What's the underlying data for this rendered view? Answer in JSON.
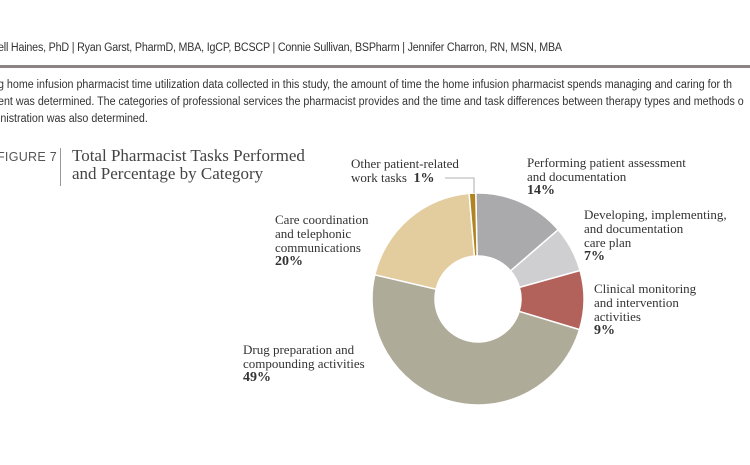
{
  "header": {
    "authors": "ell Haines, PhD | Ryan Garst, PharmD, MBA, IgCP, BCSCP | Connie Sullivan, BSPharm | Jennifer Charron, RN, MSN, MBA"
  },
  "body": {
    "lines": [
      "g home infusion pharmacist time utilization data collected in this study, the amount of time the home infusion pharmacist spends managing and caring for th",
      "ent was determined. The categories of professional services the pharmacist provides and the time and task differences between therapy types and methods o",
      "inistration was also determined."
    ]
  },
  "figure": {
    "label": "FIGURE 7",
    "title_line1": "Total Pharmacist Tasks Performed",
    "title_line2": "and Percentage by Category"
  },
  "chart_data": {
    "type": "pie",
    "variant": "donut",
    "title": "Total Pharmacist Tasks Performed and Percentage by Category",
    "start": "top, clockwise",
    "slices": [
      {
        "label": "Performing patient assessment and documentation",
        "lines": [
          "Performing patient assessment",
          "and documentation"
        ],
        "value": 14,
        "pct_label": "14%",
        "color": "#aaaaad"
      },
      {
        "label": "Developing, implementing, and documentation care plan",
        "lines": [
          "Developing, implementing,",
          "and documentation",
          "care plan"
        ],
        "value": 7,
        "pct_label": "7%",
        "color": "#cfcfd1"
      },
      {
        "label": "Clinical monitoring and intervention activities",
        "lines": [
          "Clinical monitoring",
          "and intervention",
          "activities"
        ],
        "value": 9,
        "pct_label": "9%",
        "color": "#b3625b"
      },
      {
        "label": "Drug preparation and compounding activities",
        "lines": [
          "Drug preparation and",
          "compounding activities"
        ],
        "value": 49,
        "pct_label": "49%",
        "color": "#aeab98"
      },
      {
        "label": "Care coordination and telephonic communications",
        "lines": [
          "Care coordination",
          "and telephonic",
          "communications"
        ],
        "value": 20,
        "pct_label": "20%",
        "color": "#e3cc9e"
      },
      {
        "label": "Other patient-related work tasks",
        "lines": [
          "Other patient-related",
          "work tasks"
        ],
        "value": 1,
        "pct_label": "1%",
        "color": "#b08420"
      }
    ]
  }
}
